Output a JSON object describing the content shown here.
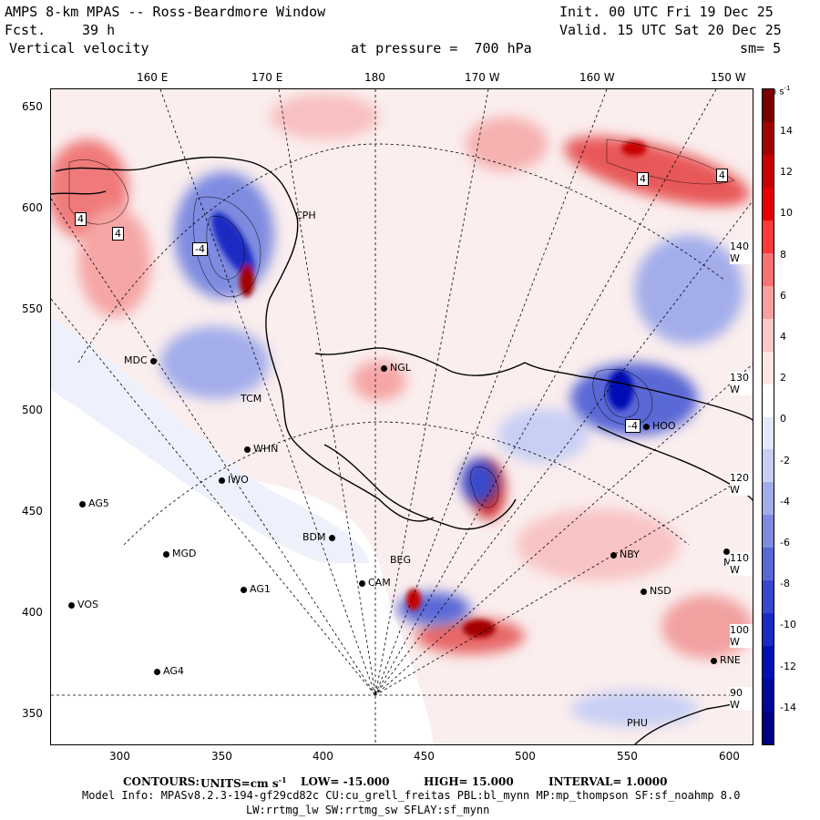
{
  "header": {
    "title": "AMPS 8-km MPAS -- Ross-Beardmore Window",
    "forecast_label": "Fcst.",
    "forecast_hours": "39 h",
    "field": "Vertical velocity",
    "init": "Init. 00 UTC Fri 19 Dec 25",
    "valid": "Valid. 15 UTC Sat 20 Dec 25",
    "pressure": "at pressure =  700 hPa",
    "smoothing": "sm= 5"
  },
  "axes": {
    "top_lon": [
      "160 E",
      "170 E",
      "180",
      "170 W",
      "160 W",
      "150 W"
    ],
    "left_y": [
      "650",
      "600",
      "550",
      "500",
      "450",
      "400",
      "350"
    ],
    "bottom_x": [
      "300",
      "350",
      "400",
      "450",
      "500",
      "550",
      "600"
    ],
    "right_lon": [
      "140 W",
      "130 W",
      "120 W",
      "110 W",
      "100 W",
      "90 W"
    ]
  },
  "colorbar": {
    "unit": "cm s",
    "unit_sup": "-1",
    "labels": [
      "14",
      "12",
      "10",
      "8",
      "6",
      "4",
      "2",
      "0",
      "-2",
      "-4",
      "-6",
      "-8",
      "-10",
      "-12",
      "-14"
    ],
    "colors": [
      "#7b0000",
      "#a30000",
      "#c80000",
      "#e60000",
      "#ff3a3a",
      "#f87272",
      "#f8a0a0",
      "#fbc8c8",
      "#fde6e6",
      "#ffffff",
      "#e4e8fb",
      "#c8cff4",
      "#a3adea",
      "#7e8be0",
      "#5a68d6",
      "#3848cc",
      "#1a2ac2",
      "#0010b4",
      "#00089a",
      "#000080"
    ]
  },
  "stations": [
    "CPH",
    "NGL",
    "MDC",
    "TCM",
    "WHN",
    "IWO",
    "AG5",
    "MGD",
    "BDM",
    "AG1",
    "VOS",
    "AG4",
    "CAM",
    "BEG",
    "NBY",
    "NSD",
    "MTK",
    "RNE",
    "PHU",
    "HOO"
  ],
  "contour_labels": [
    "4",
    "4",
    "4",
    "4",
    "-4",
    "-4"
  ],
  "footer": {
    "contours_label": "CONTOURS:",
    "units_label": "UNITS=cm s",
    "units_sup": "-1",
    "low": "LOW= -15.000",
    "high": "HIGH= 15.000",
    "interval": "INTERVAL= 1.0000",
    "model_info": "Model Info: MPASv8.2.3-194-gf29cd82c CU:cu_grell_freitas PBL:bl_mynn MP:mp_thompson SF:sf_noahmp 8.0",
    "physics": "LW:rrtmg_lw SW:rrtmg_sw SFLAY:sf_mynn"
  }
}
